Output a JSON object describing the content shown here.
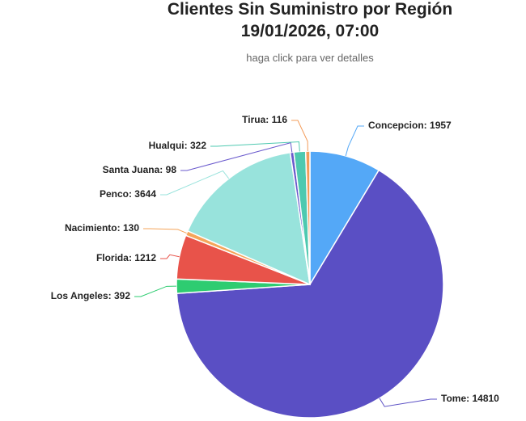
{
  "chart_data": {
    "type": "pie",
    "title": "Clientes Sin Suministro por Región",
    "title_line2": "19/01/2026, 07:00",
    "subtitle": "haga click para ver detalles",
    "categories": [
      "Concepcion",
      "Tome",
      "Los Angeles",
      "Florida",
      "Nacimiento",
      "Penco",
      "Santa Juana",
      "Hualqui",
      "Tirua"
    ],
    "values": [
      1957,
      14810,
      392,
      1212,
      130,
      3644,
      98,
      322,
      116
    ],
    "colors": [
      "#54a8f7",
      "#5a4fc4",
      "#2ecc71",
      "#e8534a",
      "#f5a55a",
      "#98e3dc",
      "#6a5acd",
      "#4ec9b0",
      "#f39c5a"
    ]
  }
}
